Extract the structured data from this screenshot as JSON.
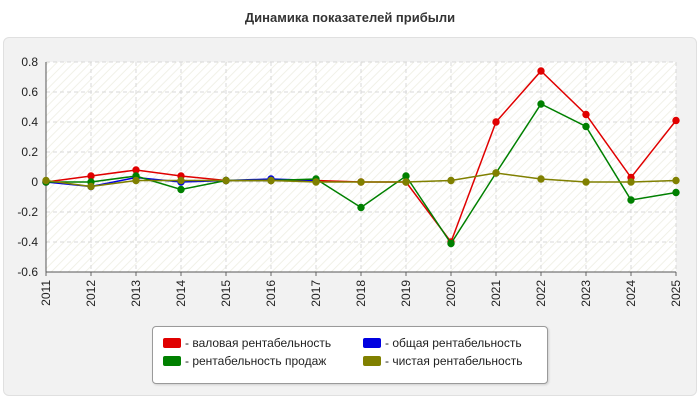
{
  "chart_data": {
    "type": "line",
    "title": "Динамика показателей прибыли",
    "xlabel": "",
    "ylabel": "",
    "categories": [
      "2011",
      "2012",
      "2013",
      "2014",
      "2015",
      "2016",
      "2017",
      "2018",
      "2019",
      "2020",
      "2021",
      "2022",
      "2023",
      "2024",
      "2025"
    ],
    "y_ticks": [
      "0.8",
      "0.6",
      "0.4",
      "0.2",
      "0",
      "-0.2",
      "-0.4",
      "-0.6"
    ],
    "ylim": [
      -0.6,
      0.8
    ],
    "grid": true,
    "legend_position": "bottom",
    "series": [
      {
        "name": "- валовая рентабельность",
        "color": "#e00000",
        "x": [
          "2011",
          "2012",
          "2013",
          "2014",
          "2015",
          "2016",
          "2017",
          "2018",
          "2019",
          "2020",
          "2021",
          "2022",
          "2023",
          "2024",
          "2025"
        ],
        "values": [
          0.0,
          0.04,
          0.08,
          0.04,
          0.01,
          0.01,
          0.01,
          0.0,
          0.0,
          -0.4,
          0.4,
          0.74,
          0.45,
          0.03,
          0.41
        ]
      },
      {
        "name": "- общая рентабельность",
        "color": "#0000e0",
        "x": [
          "2011",
          "2012",
          "2013",
          "2014",
          "2015",
          "2016",
          "2017"
        ],
        "values": [
          0.0,
          -0.03,
          0.03,
          0.0,
          0.01,
          0.02,
          0.01
        ]
      },
      {
        "name": "- рентабельность продаж",
        "color": "#008000",
        "x": [
          "2011",
          "2012",
          "2013",
          "2014",
          "2015",
          "2016",
          "2017",
          "2018",
          "2019",
          "2020",
          "2021",
          "2022",
          "2023",
          "2024",
          "2025"
        ],
        "values": [
          0.0,
          0.0,
          0.04,
          -0.05,
          0.01,
          0.01,
          0.02,
          -0.17,
          0.04,
          -0.41,
          0.06,
          0.52,
          0.37,
          -0.12,
          -0.07
        ]
      },
      {
        "name": "- чистая рентабельность",
        "color": "#808000",
        "x": [
          "2011",
          "2012",
          "2013",
          "2014",
          "2015",
          "2016",
          "2017",
          "2018",
          "2019",
          "2020",
          "2021",
          "2022",
          "2023",
          "2024",
          "2025"
        ],
        "values": [
          0.01,
          -0.03,
          0.01,
          0.01,
          0.01,
          0.01,
          0.0,
          0.0,
          0.0,
          0.01,
          0.06,
          0.02,
          0.0,
          0.0,
          0.01
        ]
      }
    ],
    "legend_order": [
      0,
      1,
      2,
      3
    ]
  }
}
